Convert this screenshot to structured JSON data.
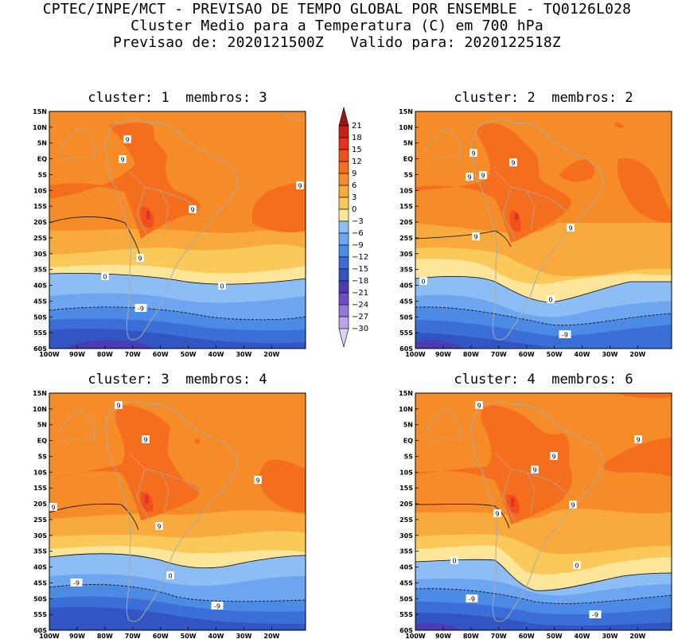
{
  "header": {
    "line1": "CPTEC/INPE/MCT - PREVISAO DE TEMPO GLOBAL POR ENSEMBLE - TQ0126L028",
    "line2": "Cluster Medio para a Temperatura (C) em 700 hPa",
    "line3": "Previsao de: 2020121500Z   Valido para: 2020122518Z"
  },
  "panels": [
    {
      "title": "cluster: 1  membros: 3"
    },
    {
      "title": "cluster: 2  membros: 2"
    },
    {
      "title": "cluster: 3  membros: 4"
    },
    {
      "title": "cluster: 4  membros: 6"
    }
  ],
  "lat_labels": [
    "15N",
    "10N",
    "5N",
    "EQ",
    "5S",
    "10S",
    "15S",
    "20S",
    "25S",
    "30S",
    "35S",
    "40S",
    "45S",
    "50S",
    "55S",
    "60S"
  ],
  "lon_labels": [
    "100W",
    "90W",
    "80W",
    "70W",
    "60W",
    "50W",
    "40W",
    "30W",
    "20W"
  ],
  "colorbar": {
    "labels": [
      "21",
      "18",
      "15",
      "12",
      "9",
      "6",
      "3",
      "0",
      "-3",
      "-6",
      "-9",
      "-12",
      "-15",
      "-18",
      "-21",
      "-24",
      "-27",
      "-30"
    ],
    "colors": [
      "#a0140f",
      "#c81e14",
      "#e6321e",
      "#f0501e",
      "#f56e1e",
      "#f58c28",
      "#f9aa3c",
      "#fbc85a",
      "#fde69a",
      "#8cbef5",
      "#6ea5f0",
      "#4b8be6",
      "#3c6ed7",
      "#3255c3",
      "#4b3cb4",
      "#6e4bc8",
      "#9678d7",
      "#b9a5e6",
      "#dcd2f5"
    ]
  },
  "contour_labels": {
    "p1": [
      "9",
      "9",
      "9",
      "9",
      "9",
      "0",
      "0",
      "-9"
    ],
    "p2": [
      "9",
      "9",
      "9",
      "9",
      "9",
      "9",
      "0",
      "0",
      "-9"
    ],
    "p3": [
      "9",
      "9",
      "9",
      "9",
      "9",
      "0",
      "-9",
      "-9"
    ],
    "p4": [
      "9",
      "9",
      "9",
      "9",
      "9",
      "9",
      "0",
      "0",
      "-9",
      "-9"
    ]
  }
}
